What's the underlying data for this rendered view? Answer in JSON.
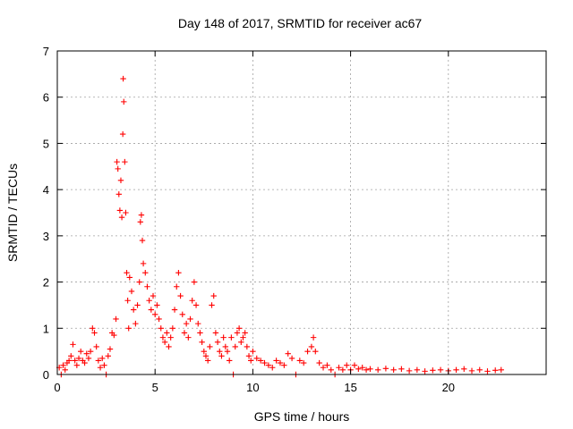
{
  "chart_data": {
    "type": "scatter",
    "title": "Day 148 of 2017, SRMTID for receiver ac67",
    "xlabel": "GPS time / hours",
    "ylabel": "SRMTID / TECUs",
    "xlim": [
      0,
      25
    ],
    "ylim": [
      0,
      7
    ],
    "xticks": [
      0,
      5,
      10,
      15,
      20
    ],
    "yticks": [
      0,
      1,
      2,
      3,
      4,
      5,
      6,
      7
    ],
    "grid": true,
    "marker": "+",
    "series": [
      {
        "name": "SRMTID",
        "color": "#ff0000",
        "points": [
          [
            0.1,
            0.15
          ],
          [
            0.2,
            0.0
          ],
          [
            0.3,
            0.2
          ],
          [
            0.4,
            0.1
          ],
          [
            0.5,
            0.25
          ],
          [
            0.6,
            0.3
          ],
          [
            0.7,
            0.4
          ],
          [
            0.8,
            0.65
          ],
          [
            0.9,
            0.3
          ],
          [
            1.0,
            0.2
          ],
          [
            1.1,
            0.35
          ],
          [
            1.2,
            0.5
          ],
          [
            1.3,
            0.3
          ],
          [
            1.4,
            0.25
          ],
          [
            1.5,
            0.45
          ],
          [
            1.6,
            0.35
          ],
          [
            1.7,
            0.5
          ],
          [
            1.8,
            1.0
          ],
          [
            1.9,
            0.9
          ],
          [
            2.0,
            0.6
          ],
          [
            2.1,
            0.3
          ],
          [
            2.2,
            0.15
          ],
          [
            2.3,
            0.35
          ],
          [
            2.4,
            0.2
          ],
          [
            2.5,
            0.0
          ],
          [
            2.6,
            0.4
          ],
          [
            2.7,
            0.55
          ],
          [
            2.8,
            0.9
          ],
          [
            2.9,
            0.85
          ],
          [
            3.0,
            1.2
          ],
          [
            3.05,
            4.6
          ],
          [
            3.1,
            4.45
          ],
          [
            3.15,
            3.9
          ],
          [
            3.2,
            3.55
          ],
          [
            3.25,
            4.2
          ],
          [
            3.3,
            3.4
          ],
          [
            3.35,
            5.2
          ],
          [
            3.37,
            6.4
          ],
          [
            3.4,
            5.9
          ],
          [
            3.45,
            4.6
          ],
          [
            3.5,
            3.5
          ],
          [
            3.55,
            2.2
          ],
          [
            3.6,
            1.6
          ],
          [
            3.65,
            1.0
          ],
          [
            3.7,
            2.1
          ],
          [
            3.8,
            1.8
          ],
          [
            3.9,
            1.4
          ],
          [
            4.0,
            1.1
          ],
          [
            4.1,
            1.5
          ],
          [
            4.2,
            2.0
          ],
          [
            4.25,
            3.3
          ],
          [
            4.3,
            3.45
          ],
          [
            4.35,
            2.9
          ],
          [
            4.4,
            2.4
          ],
          [
            4.5,
            2.2
          ],
          [
            4.6,
            1.9
          ],
          [
            4.7,
            1.6
          ],
          [
            4.8,
            1.4
          ],
          [
            4.9,
            1.7
          ],
          [
            5.0,
            1.3
          ],
          [
            5.1,
            1.5
          ],
          [
            5.2,
            1.2
          ],
          [
            5.3,
            1.0
          ],
          [
            5.4,
            0.8
          ],
          [
            5.5,
            0.7
          ],
          [
            5.6,
            0.9
          ],
          [
            5.7,
            0.6
          ],
          [
            5.8,
            0.8
          ],
          [
            5.9,
            1.0
          ],
          [
            6.0,
            1.4
          ],
          [
            6.1,
            1.9
          ],
          [
            6.2,
            2.2
          ],
          [
            6.3,
            1.7
          ],
          [
            6.4,
            1.3
          ],
          [
            6.5,
            0.9
          ],
          [
            6.6,
            1.1
          ],
          [
            6.7,
            0.8
          ],
          [
            6.8,
            1.2
          ],
          [
            6.9,
            1.6
          ],
          [
            7.0,
            2.0
          ],
          [
            7.1,
            1.5
          ],
          [
            7.2,
            1.1
          ],
          [
            7.3,
            0.9
          ],
          [
            7.4,
            0.7
          ],
          [
            7.5,
            0.5
          ],
          [
            7.6,
            0.4
          ],
          [
            7.7,
            0.3
          ],
          [
            7.8,
            0.6
          ],
          [
            7.9,
            1.5
          ],
          [
            8.0,
            1.7
          ],
          [
            8.1,
            0.9
          ],
          [
            8.2,
            0.7
          ],
          [
            8.3,
            0.5
          ],
          [
            8.4,
            0.4
          ],
          [
            8.5,
            0.8
          ],
          [
            8.6,
            0.6
          ],
          [
            8.7,
            0.5
          ],
          [
            8.8,
            0.3
          ],
          [
            8.9,
            0.8
          ],
          [
            9.0,
            0.0
          ],
          [
            9.1,
            0.6
          ],
          [
            9.2,
            0.9
          ],
          [
            9.3,
            1.0
          ],
          [
            9.4,
            0.7
          ],
          [
            9.5,
            0.8
          ],
          [
            9.6,
            0.9
          ],
          [
            9.7,
            0.6
          ],
          [
            9.8,
            0.4
          ],
          [
            9.9,
            0.3
          ],
          [
            10.0,
            0.5
          ],
          [
            10.2,
            0.35
          ],
          [
            10.4,
            0.3
          ],
          [
            10.6,
            0.25
          ],
          [
            10.8,
            0.2
          ],
          [
            11.0,
            0.15
          ],
          [
            11.2,
            0.3
          ],
          [
            11.4,
            0.25
          ],
          [
            11.6,
            0.2
          ],
          [
            11.8,
            0.45
          ],
          [
            12.0,
            0.35
          ],
          [
            12.2,
            0.0
          ],
          [
            12.4,
            0.3
          ],
          [
            12.6,
            0.25
          ],
          [
            12.8,
            0.5
          ],
          [
            13.0,
            0.6
          ],
          [
            13.1,
            0.8
          ],
          [
            13.2,
            0.5
          ],
          [
            13.4,
            0.25
          ],
          [
            13.6,
            0.15
          ],
          [
            13.8,
            0.2
          ],
          [
            14.0,
            0.1
          ],
          [
            14.2,
            0.0
          ],
          [
            14.4,
            0.15
          ],
          [
            14.6,
            0.1
          ],
          [
            14.8,
            0.2
          ],
          [
            15.0,
            0.1
          ],
          [
            15.2,
            0.2
          ],
          [
            15.4,
            0.12
          ],
          [
            15.6,
            0.15
          ],
          [
            15.8,
            0.1
          ],
          [
            16.0,
            0.12
          ],
          [
            16.4,
            0.1
          ],
          [
            16.8,
            0.13
          ],
          [
            17.2,
            0.1
          ],
          [
            17.6,
            0.12
          ],
          [
            18.0,
            0.08
          ],
          [
            18.4,
            0.1
          ],
          [
            18.8,
            0.07
          ],
          [
            19.2,
            0.09
          ],
          [
            19.6,
            0.1
          ],
          [
            20.0,
            0.08
          ],
          [
            20.4,
            0.1
          ],
          [
            20.8,
            0.12
          ],
          [
            21.2,
            0.08
          ],
          [
            21.6,
            0.1
          ],
          [
            22.0,
            0.07
          ],
          [
            22.4,
            0.09
          ],
          [
            22.7,
            0.1
          ]
        ]
      }
    ]
  }
}
